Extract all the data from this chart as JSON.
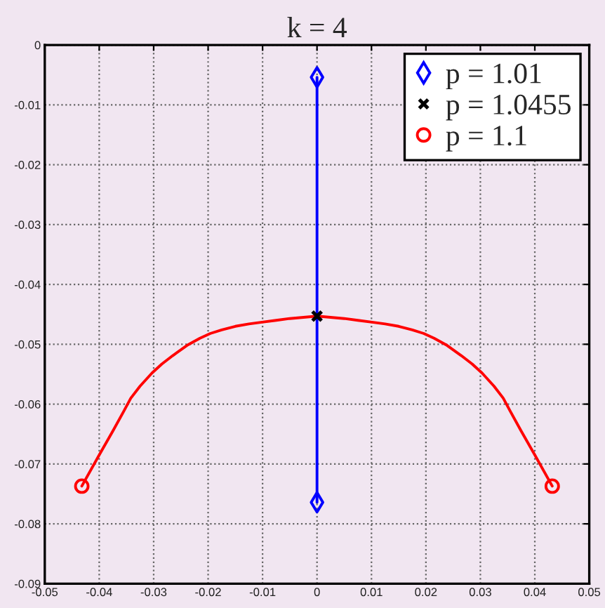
{
  "chart_data": {
    "type": "line",
    "title": "k = 4",
    "xlim": [
      -0.05,
      0.05
    ],
    "xticks": [
      -0.05,
      -0.04,
      -0.03,
      -0.02,
      -0.01,
      0,
      0.01,
      0.02,
      0.03,
      0.04,
      0.05
    ],
    "ylim": [
      -0.09,
      0
    ],
    "yticks": [
      -0.09,
      -0.08,
      -0.07,
      -0.06,
      -0.05,
      -0.04,
      -0.03,
      -0.02,
      -0.01,
      0
    ],
    "grid": true,
    "legend": "top right",
    "line_style": "solid",
    "series": [
      {
        "color": "#0000ff",
        "x": [
          0,
          0
        ],
        "values": [
          -0.0054,
          -0.0764
        ]
      },
      {
        "color": "#ff0000",
        "x": [
          -0.0432,
          -0.04,
          -0.0375,
          -0.0355,
          -0.0342,
          -0.0325,
          -0.0303,
          -0.0285,
          -0.0265,
          -0.0239,
          -0.0215,
          -0.0196,
          -0.0175,
          -0.015,
          -0.0125,
          -0.0101,
          -0.0075,
          -0.005,
          -0.0025,
          0,
          0.0025,
          0.005,
          0.0075,
          0.0101,
          0.0125,
          0.015,
          0.0175,
          0.0196,
          0.0215,
          0.0239,
          0.0265,
          0.0285,
          0.0303,
          0.0325,
          0.0342,
          0.0355,
          0.0375,
          0.04,
          0.0432
        ],
        "values": [
          -0.0737,
          -0.0685,
          -0.0645,
          -0.0612,
          -0.059,
          -0.057,
          -0.0548,
          -0.0533,
          -0.0519,
          -0.0502,
          -0.049,
          -0.0482,
          -0.0476,
          -0.047,
          -0.0466,
          -0.0463,
          -0.046,
          -0.0457,
          -0.0455,
          -0.0453,
          -0.0455,
          -0.0457,
          -0.046,
          -0.0463,
          -0.0466,
          -0.047,
          -0.0476,
          -0.0482,
          -0.049,
          -0.0502,
          -0.0519,
          -0.0533,
          -0.0548,
          -0.057,
          -0.059,
          -0.0612,
          -0.0645,
          -0.0685,
          -0.0737
        ]
      },
      {
        "name": "p = 1.01",
        "type": "scatter",
        "marker": "diamond",
        "color": "#0000ff",
        "x": [
          0,
          0
        ],
        "values": [
          -0.0054,
          -0.0764
        ]
      },
      {
        "name": "p = 1.0455",
        "type": "scatter",
        "marker": "cross",
        "color": "#000000",
        "x": [
          0
        ],
        "values": [
          -0.0453
        ]
      },
      {
        "name": "p = 1.1",
        "type": "scatter",
        "marker": "circle",
        "color": "#ff0000",
        "x": [
          -0.0432,
          0.0432
        ],
        "values": [
          -0.0737,
          -0.0737
        ]
      }
    ]
  }
}
